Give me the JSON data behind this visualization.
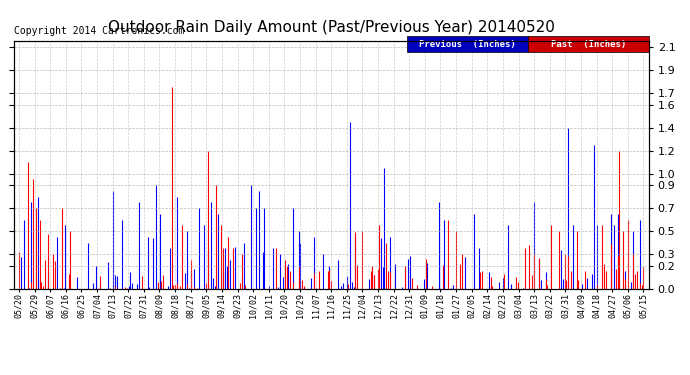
{
  "title": "Outdoor Rain Daily Amount (Past/Previous Year) 20140520",
  "copyright": "Copyright 2014 Cartronics.com",
  "legend_previous": "Previous  (Inches)",
  "legend_past": "Past  (Inches)",
  "legend_previous_color": "#0000ff",
  "legend_past_color": "#ff0000",
  "legend_previous_bg": "#0000bb",
  "legend_past_bg": "#cc0000",
  "yticks": [
    0.0,
    0.2,
    0.3,
    0.5,
    0.7,
    0.9,
    1.0,
    1.2,
    1.4,
    1.6,
    1.7,
    1.9,
    2.1
  ],
  "ylim": [
    0.0,
    2.15
  ],
  "background_color": "#ffffff",
  "plot_bg_color": "#ffffff",
  "grid_color": "#aaaaaa",
  "title_fontsize": 11,
  "copyright_fontsize": 7,
  "x_labels": [
    "05/20",
    "05/29",
    "06/07",
    "06/16",
    "06/25",
    "07/04",
    "07/13",
    "07/22",
    "07/31",
    "08/09",
    "08/18",
    "08/27",
    "09/05",
    "09/14",
    "09/23",
    "10/02",
    "10/11",
    "10/20",
    "10/29",
    "11/07",
    "11/16",
    "11/25",
    "12/04",
    "12/13",
    "12/22",
    "12/31",
    "01/09",
    "01/18",
    "01/27",
    "02/05",
    "02/14",
    "02/23",
    "03/04",
    "03/13",
    "03/22",
    "03/31",
    "04/09",
    "04/18",
    "04/27",
    "05/06",
    "05/15"
  ]
}
